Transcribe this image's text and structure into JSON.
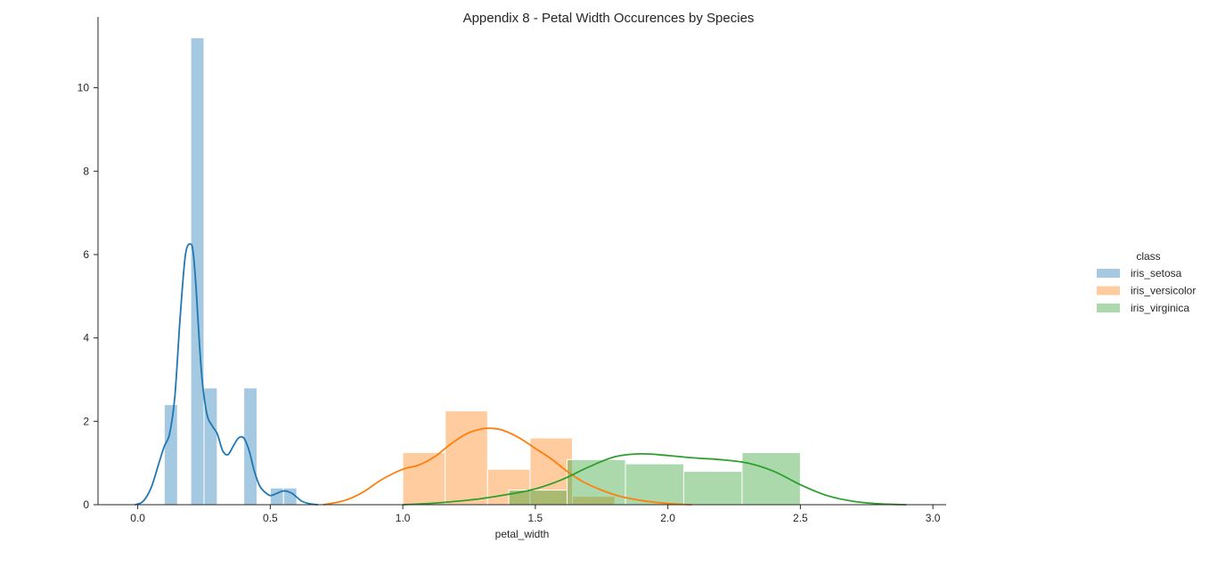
{
  "chart_data": {
    "type": "histogram",
    "title": "Appendix 8 - Petal Width Occurences by Species",
    "xlabel": "petal_width",
    "ylabel": "",
    "xlim": [
      -0.15,
      3.05
    ],
    "ylim": [
      0,
      11.7
    ],
    "xticks": [
      0.0,
      0.5,
      1.0,
      1.5,
      2.0,
      2.5,
      3.0
    ],
    "xtick_labels": [
      "0.0",
      "0.5",
      "1.0",
      "1.5",
      "2.0",
      "2.5",
      "3.0"
    ],
    "yticks": [
      0,
      2,
      4,
      6,
      8,
      10
    ],
    "ytick_labels": [
      "0",
      "2",
      "4",
      "6",
      "8",
      "10"
    ],
    "grid": false,
    "legend": {
      "title": "class",
      "position": "right"
    },
    "series": [
      {
        "name": "iris_setosa",
        "color": "#1f77b4",
        "bins": [
          {
            "x0": 0.1,
            "x1": 0.15,
            "density": 2.4
          },
          {
            "x0": 0.15,
            "x1": 0.2,
            "density": 0.0
          },
          {
            "x0": 0.2,
            "x1": 0.25,
            "density": 11.2
          },
          {
            "x0": 0.25,
            "x1": 0.3,
            "density": 2.8
          },
          {
            "x0": 0.3,
            "x1": 0.35,
            "density": 0.0
          },
          {
            "x0": 0.35,
            "x1": 0.4,
            "density": 0.0
          },
          {
            "x0": 0.4,
            "x1": 0.45,
            "density": 2.8
          },
          {
            "x0": 0.45,
            "x1": 0.5,
            "density": 0.0
          },
          {
            "x0": 0.5,
            "x1": 0.55,
            "density": 0.4
          },
          {
            "x0": 0.55,
            "x1": 0.6,
            "density": 0.4
          }
        ],
        "kde": {
          "x": [
            -0.01,
            0.02,
            0.05,
            0.08,
            0.1,
            0.12,
            0.14,
            0.16,
            0.18,
            0.2,
            0.21,
            0.22,
            0.24,
            0.26,
            0.28,
            0.3,
            0.32,
            0.34,
            0.36,
            0.38,
            0.4,
            0.42,
            0.44,
            0.46,
            0.48,
            0.5,
            0.52,
            0.55,
            0.58,
            0.6,
            0.62,
            0.65,
            0.68
          ],
          "y": [
            0.0,
            0.08,
            0.4,
            1.0,
            1.4,
            1.7,
            2.6,
            4.5,
            6.0,
            6.25,
            6.0,
            5.2,
            3.2,
            2.2,
            1.9,
            1.7,
            1.3,
            1.2,
            1.4,
            1.6,
            1.6,
            1.3,
            0.8,
            0.45,
            0.3,
            0.22,
            0.26,
            0.33,
            0.28,
            0.18,
            0.08,
            0.02,
            0.0
          ]
        }
      },
      {
        "name": "iris_versicolor",
        "color": "#ff7f0e",
        "bins": [
          {
            "x0": 1.0,
            "x1": 1.16,
            "density": 1.25
          },
          {
            "x0": 1.16,
            "x1": 1.32,
            "density": 2.25
          },
          {
            "x0": 1.32,
            "x1": 1.48,
            "density": 0.85
          },
          {
            "x0": 1.48,
            "x1": 1.64,
            "density": 1.6
          },
          {
            "x0": 1.64,
            "x1": 1.8,
            "density": 0.2
          }
        ],
        "kde": {
          "x": [
            0.7,
            0.78,
            0.85,
            0.92,
            1.0,
            1.06,
            1.12,
            1.18,
            1.24,
            1.3,
            1.34,
            1.38,
            1.44,
            1.5,
            1.56,
            1.62,
            1.68,
            1.75,
            1.82,
            1.9,
            1.98,
            2.05,
            2.09
          ],
          "y": [
            0.0,
            0.1,
            0.3,
            0.6,
            0.85,
            0.95,
            1.15,
            1.45,
            1.7,
            1.82,
            1.83,
            1.78,
            1.6,
            1.35,
            1.1,
            0.8,
            0.55,
            0.35,
            0.2,
            0.1,
            0.04,
            0.01,
            0.0
          ]
        }
      },
      {
        "name": "iris_virginica",
        "color": "#2ca02c",
        "bins": [
          {
            "x0": 1.4,
            "x1": 1.62,
            "density": 0.35
          },
          {
            "x0": 1.62,
            "x1": 1.84,
            "density": 1.08
          },
          {
            "x0": 1.84,
            "x1": 2.06,
            "density": 0.98
          },
          {
            "x0": 2.06,
            "x1": 2.28,
            "density": 0.8
          },
          {
            "x0": 2.28,
            "x1": 2.5,
            "density": 1.25
          }
        ],
        "kde": {
          "x": [
            1.0,
            1.1,
            1.2,
            1.3,
            1.4,
            1.5,
            1.6,
            1.7,
            1.8,
            1.9,
            2.0,
            2.1,
            2.2,
            2.3,
            2.4,
            2.5,
            2.6,
            2.7,
            2.8,
            2.9
          ],
          "y": [
            0.0,
            0.03,
            0.08,
            0.15,
            0.25,
            0.38,
            0.6,
            0.9,
            1.15,
            1.22,
            1.18,
            1.12,
            1.08,
            1.0,
            0.8,
            0.48,
            0.22,
            0.08,
            0.02,
            0.0
          ]
        }
      }
    ]
  }
}
